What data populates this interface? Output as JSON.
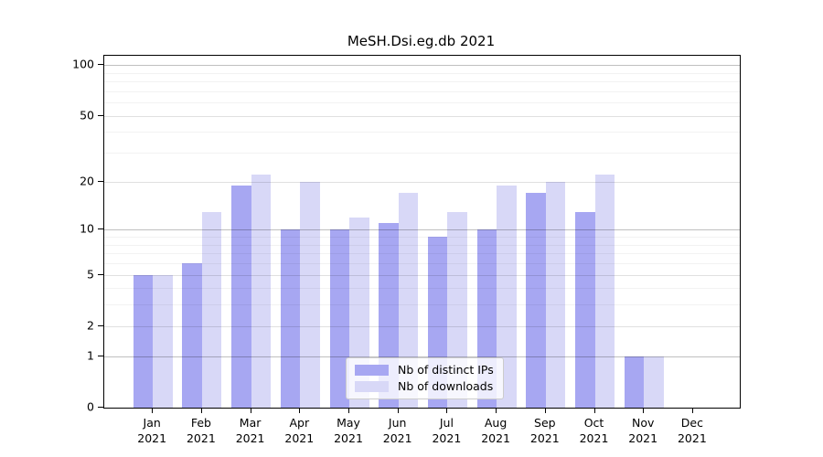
{
  "chart_data": {
    "type": "bar",
    "title": "MeSH.Dsi.eg.db 2021",
    "categories": [
      {
        "month": "Jan",
        "year": "2021"
      },
      {
        "month": "Feb",
        "year": "2021"
      },
      {
        "month": "Mar",
        "year": "2021"
      },
      {
        "month": "Apr",
        "year": "2021"
      },
      {
        "month": "May",
        "year": "2021"
      },
      {
        "month": "Jun",
        "year": "2021"
      },
      {
        "month": "Jul",
        "year": "2021"
      },
      {
        "month": "Aug",
        "year": "2021"
      },
      {
        "month": "Sep",
        "year": "2021"
      },
      {
        "month": "Oct",
        "year": "2021"
      },
      {
        "month": "Nov",
        "year": "2021"
      },
      {
        "month": "Dec",
        "year": "2021"
      }
    ],
    "series": [
      {
        "name": "Nb of distinct IPs",
        "color": "#a7a7f2",
        "values": [
          5,
          6,
          19,
          10,
          10,
          11,
          9,
          10,
          17,
          13,
          1,
          0
        ]
      },
      {
        "name": "Nb of downloads",
        "color": "#d8d8f7",
        "values": [
          5,
          13,
          22,
          20,
          12,
          17,
          13,
          19,
          20,
          22,
          1,
          0
        ]
      }
    ],
    "xlabel": "",
    "ylabel": "",
    "yscale": "log1p",
    "y_ticks": [
      0,
      1,
      2,
      5,
      10,
      20,
      50,
      100
    ],
    "decade_gridlines": [
      1,
      10,
      100
    ],
    "mid_gridlines": [
      2,
      5,
      20,
      50
    ],
    "minor_gridlines": [
      3,
      4,
      6,
      7,
      8,
      9,
      30,
      40,
      60,
      70,
      80,
      90
    ],
    "ylim": [
      0,
      116
    ],
    "grid": true,
    "legend_position": "lower center"
  }
}
